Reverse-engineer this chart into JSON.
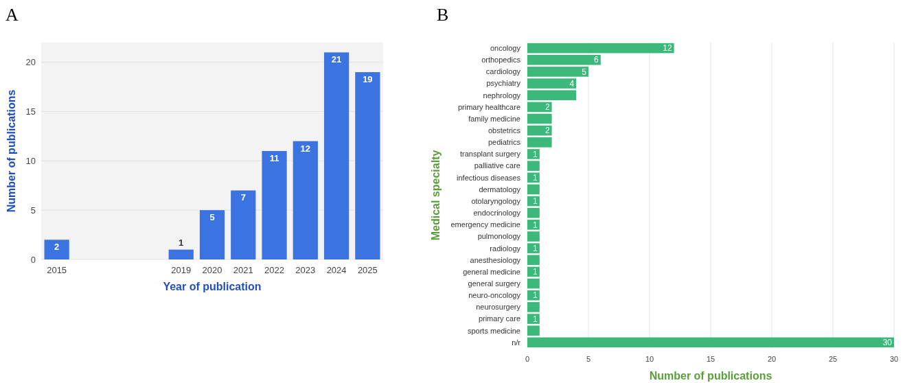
{
  "chart_data": [
    {
      "type": "bar",
      "annotations": [
        "A"
      ],
      "xlabel": "Year of publication",
      "ylabel": "Number of publications",
      "color": "#3b73e0",
      "x": [
        2015,
        2019,
        2020,
        2021,
        2022,
        2023,
        2024,
        2025
      ],
      "values": [
        2,
        1,
        5,
        7,
        11,
        12,
        21,
        19
      ],
      "xlim": [
        2014.5,
        2025.5
      ],
      "xticks": [
        2015,
        2019,
        2020,
        2021,
        2022,
        2023,
        2024,
        2025
      ],
      "ylim": [
        0,
        22
      ],
      "yticks": [
        0,
        5,
        10,
        15,
        20
      ],
      "grid": "y",
      "data_labels": true
    },
    {
      "type": "bar",
      "orientation": "horizontal",
      "annotations": [
        "B"
      ],
      "xlabel": "Number of publications",
      "ylabel": "Medical specialty",
      "color": "#3cb87a",
      "categories": [
        "oncology",
        "orthopedics",
        "cardiology",
        "psychiatry",
        "nephrology",
        "primary healthcare",
        "family medicine",
        "obstetrics",
        "pediatrics",
        "transplant surgery",
        "palliative care",
        "infectious diseases",
        "dermatology",
        "otolaryngology",
        "endocrinology",
        "emergency medicine",
        "pulmonology",
        "radiology",
        "anesthesiology",
        "general medicine",
        "general surgery",
        "neuro-oncology",
        "neurosurgery",
        "primary care",
        "sports medicine",
        "n/r"
      ],
      "values": [
        12,
        6,
        5,
        4,
        4,
        2,
        2,
        2,
        2,
        1,
        1,
        1,
        1,
        1,
        1,
        1,
        1,
        1,
        1,
        1,
        1,
        1,
        1,
        1,
        1,
        30
      ],
      "value_labels": [
        "12",
        "6",
        "5",
        "4",
        null,
        "2",
        null,
        "2",
        null,
        "1",
        null,
        "1",
        null,
        "1",
        null,
        "1",
        null,
        "1",
        null,
        "1",
        null,
        "1",
        null,
        "1",
        null,
        "30"
      ],
      "xlim": [
        0,
        30
      ],
      "xticks": [
        0,
        5,
        10,
        15,
        20,
        25,
        30
      ],
      "grid": "x"
    }
  ]
}
